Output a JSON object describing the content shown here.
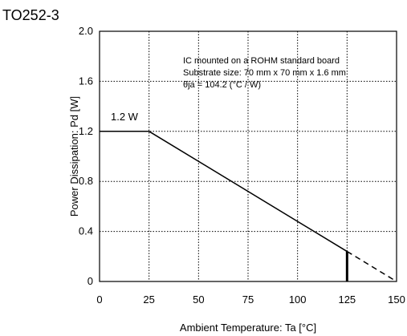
{
  "chart_data": {
    "type": "line",
    "title": "TO252-3",
    "xlabel": "Ambient Temperature: Ta [°C]",
    "ylabel": "Power Dissipation: Pd [W]",
    "xlim": [
      0,
      150
    ],
    "ylim": [
      0,
      2.0
    ],
    "x_ticks": [
      0,
      25,
      50,
      75,
      100,
      125,
      150
    ],
    "x_tick_labels": [
      "0",
      "25",
      "50",
      "75",
      "100",
      "125",
      "150"
    ],
    "y_ticks": [
      0,
      0.4,
      0.8,
      1.2,
      1.6,
      2.0
    ],
    "y_tick_labels": [
      "0",
      "0.4",
      "0.8",
      "1.2",
      "1.6",
      "2.0"
    ],
    "grid": "dotted",
    "series": [
      {
        "x": [
          0,
          25,
          125
        ],
        "y": [
          1.2,
          1.2,
          0.24
        ],
        "style": "solid"
      },
      {
        "x": [
          125,
          150
        ],
        "y": [
          0.24,
          0.0
        ],
        "style": "dashed"
      }
    ],
    "marker_x": 125,
    "annotations": {
      "peak_label": "1.2 W",
      "notes": [
        "IC mounted on a ROHM standard board",
        "Substrate size: 70 mm x 70 mm x 1.6 mm",
        "θja = 104.2 (°C / W)"
      ]
    }
  }
}
